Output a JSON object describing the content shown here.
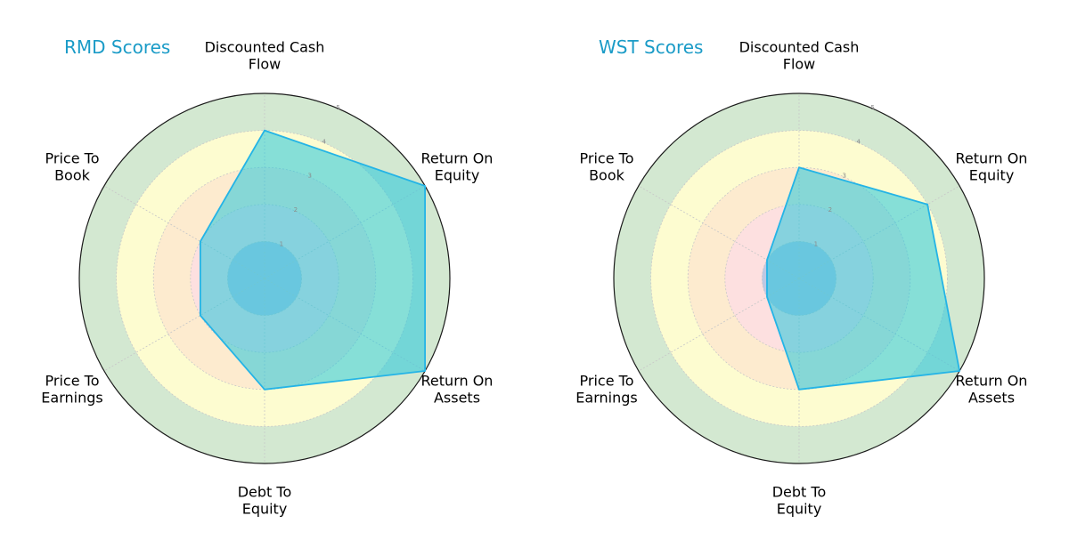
{
  "chart_data": [
    {
      "type": "radar",
      "title": "RMD Scores",
      "axes": [
        "Discounted Cash Flow",
        "Return On Equity",
        "Return On Assets",
        "Debt To Equity",
        "Price To Earnings",
        "Price To Book"
      ],
      "axis_label_lines": [
        [
          "Discounted Cash",
          "Flow"
        ],
        [
          "Return On",
          "Equity"
        ],
        [
          "Return On",
          "Assets"
        ],
        [
          "Debt To",
          "Equity"
        ],
        [
          "Price To",
          "Earnings"
        ],
        [
          "Price To",
          "Book"
        ]
      ],
      "series": [
        {
          "values": [
            4,
            5,
            5,
            3,
            2,
            2
          ]
        }
      ],
      "rlim": [
        0,
        5
      ],
      "rticks": [
        "1",
        "2",
        "3",
        "4",
        "5"
      ]
    },
    {
      "type": "radar",
      "title": "WST Scores",
      "axes": [
        "Discounted Cash Flow",
        "Return On Equity",
        "Return On Assets",
        "Debt To Equity",
        "Price To Earnings",
        "Price To Book"
      ],
      "axis_label_lines": [
        [
          "Discounted Cash",
          "Flow"
        ],
        [
          "Return On",
          "Equity"
        ],
        [
          "Return On",
          "Assets"
        ],
        [
          "Debt To",
          "Equity"
        ],
        [
          "Price To",
          "Earnings"
        ],
        [
          "Price To",
          "Book"
        ]
      ],
      "series": [
        {
          "values": [
            3,
            4,
            5,
            3,
            1,
            1
          ]
        }
      ],
      "rlim": [
        0,
        5
      ],
      "rticks": [
        "1",
        "2",
        "3",
        "4",
        "5"
      ]
    }
  ],
  "style": {
    "band_colors": [
      "#b8b8d8",
      "#c4dcf0",
      "#fde0e0",
      "#fdebcf",
      "#fdfcd0",
      "#d3e8d1"
    ],
    "fill_color": "#25c6dc",
    "edge_color": "#24b4e6",
    "title_color": "#1a9bc7",
    "grid_color": "#c8c8c8"
  }
}
